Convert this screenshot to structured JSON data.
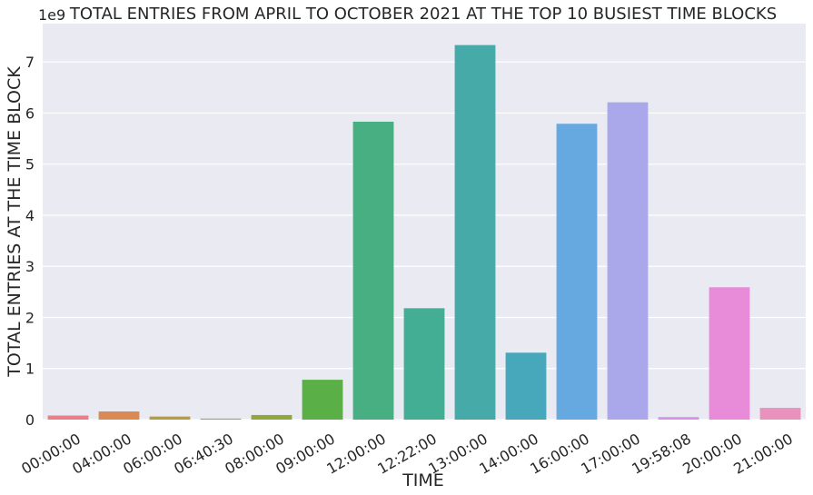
{
  "chart_data": {
    "type": "bar",
    "title": "TOTAL ENTRIES FROM APRIL TO OCTOBER 2021 AT THE TOP 10 BUSIEST TIME BLOCKS",
    "xlabel": "TIME",
    "ylabel": "TOTAL ENTRIES AT THE TIME BLOCK",
    "y_offset_label": "1e9",
    "ylim": [
      0,
      7.75
    ],
    "yticks": [
      0,
      1,
      2,
      3,
      4,
      5,
      6,
      7
    ],
    "grid": true,
    "categories": [
      "00:00:00",
      "04:00:00",
      "06:00:00",
      "06:40:30",
      "08:00:00",
      "09:00:00",
      "12:00:00",
      "12:22:00",
      "13:00:00",
      "14:00:00",
      "16:00:00",
      "17:00:00",
      "19:58:08",
      "20:00:00",
      "21:00:00"
    ],
    "values": [
      0.08,
      0.16,
      0.06,
      0.02,
      0.09,
      0.78,
      5.83,
      2.18,
      7.33,
      1.31,
      5.79,
      6.21,
      0.05,
      2.59,
      0.23
    ],
    "colors": [
      "#ea7f8a",
      "#dc8a55",
      "#b59d3d",
      "#a4a33c",
      "#8fa83b",
      "#5aaf47",
      "#47af81",
      "#44ae95",
      "#46aaa8",
      "#48a8bb",
      "#65a9e0",
      "#aaa8ea",
      "#d893e7",
      "#e88bd8",
      "#e892bd"
    ]
  }
}
